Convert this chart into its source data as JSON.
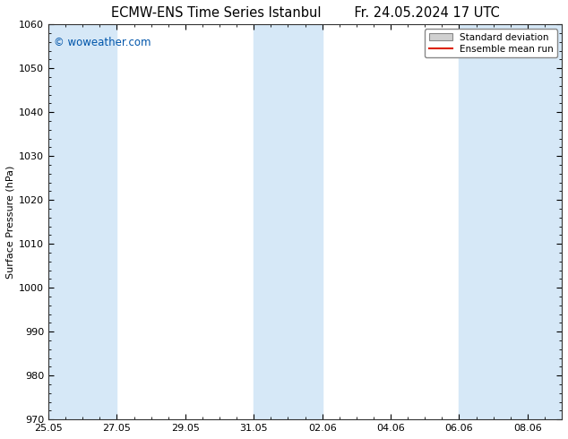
{
  "title_left": "ECMW-ENS Time Series Istanbul",
  "title_right": "Fr. 24.05.2024 17 UTC",
  "ylabel": "Surface Pressure (hPa)",
  "ylim": [
    970,
    1060
  ],
  "yticks": [
    970,
    980,
    990,
    1000,
    1010,
    1020,
    1030,
    1040,
    1050,
    1060
  ],
  "xtick_labels": [
    "25.05",
    "27.05",
    "29.05",
    "31.05",
    "02.06",
    "04.06",
    "06.06",
    "08.06"
  ],
  "shaded_color": "#d6e8f7",
  "background_color": "#ffffff",
  "plot_bg_color": "#ffffff",
  "watermark": "© woweather.com",
  "watermark_color": "#0055aa",
  "legend_std_facecolor": "#d0d0d0",
  "legend_std_edgecolor": "#888888",
  "legend_mean_color": "#dd2200",
  "title_fontsize": 10.5,
  "ylabel_fontsize": 8,
  "tick_fontsize": 8,
  "legend_fontsize": 7.5,
  "watermark_fontsize": 8.5
}
